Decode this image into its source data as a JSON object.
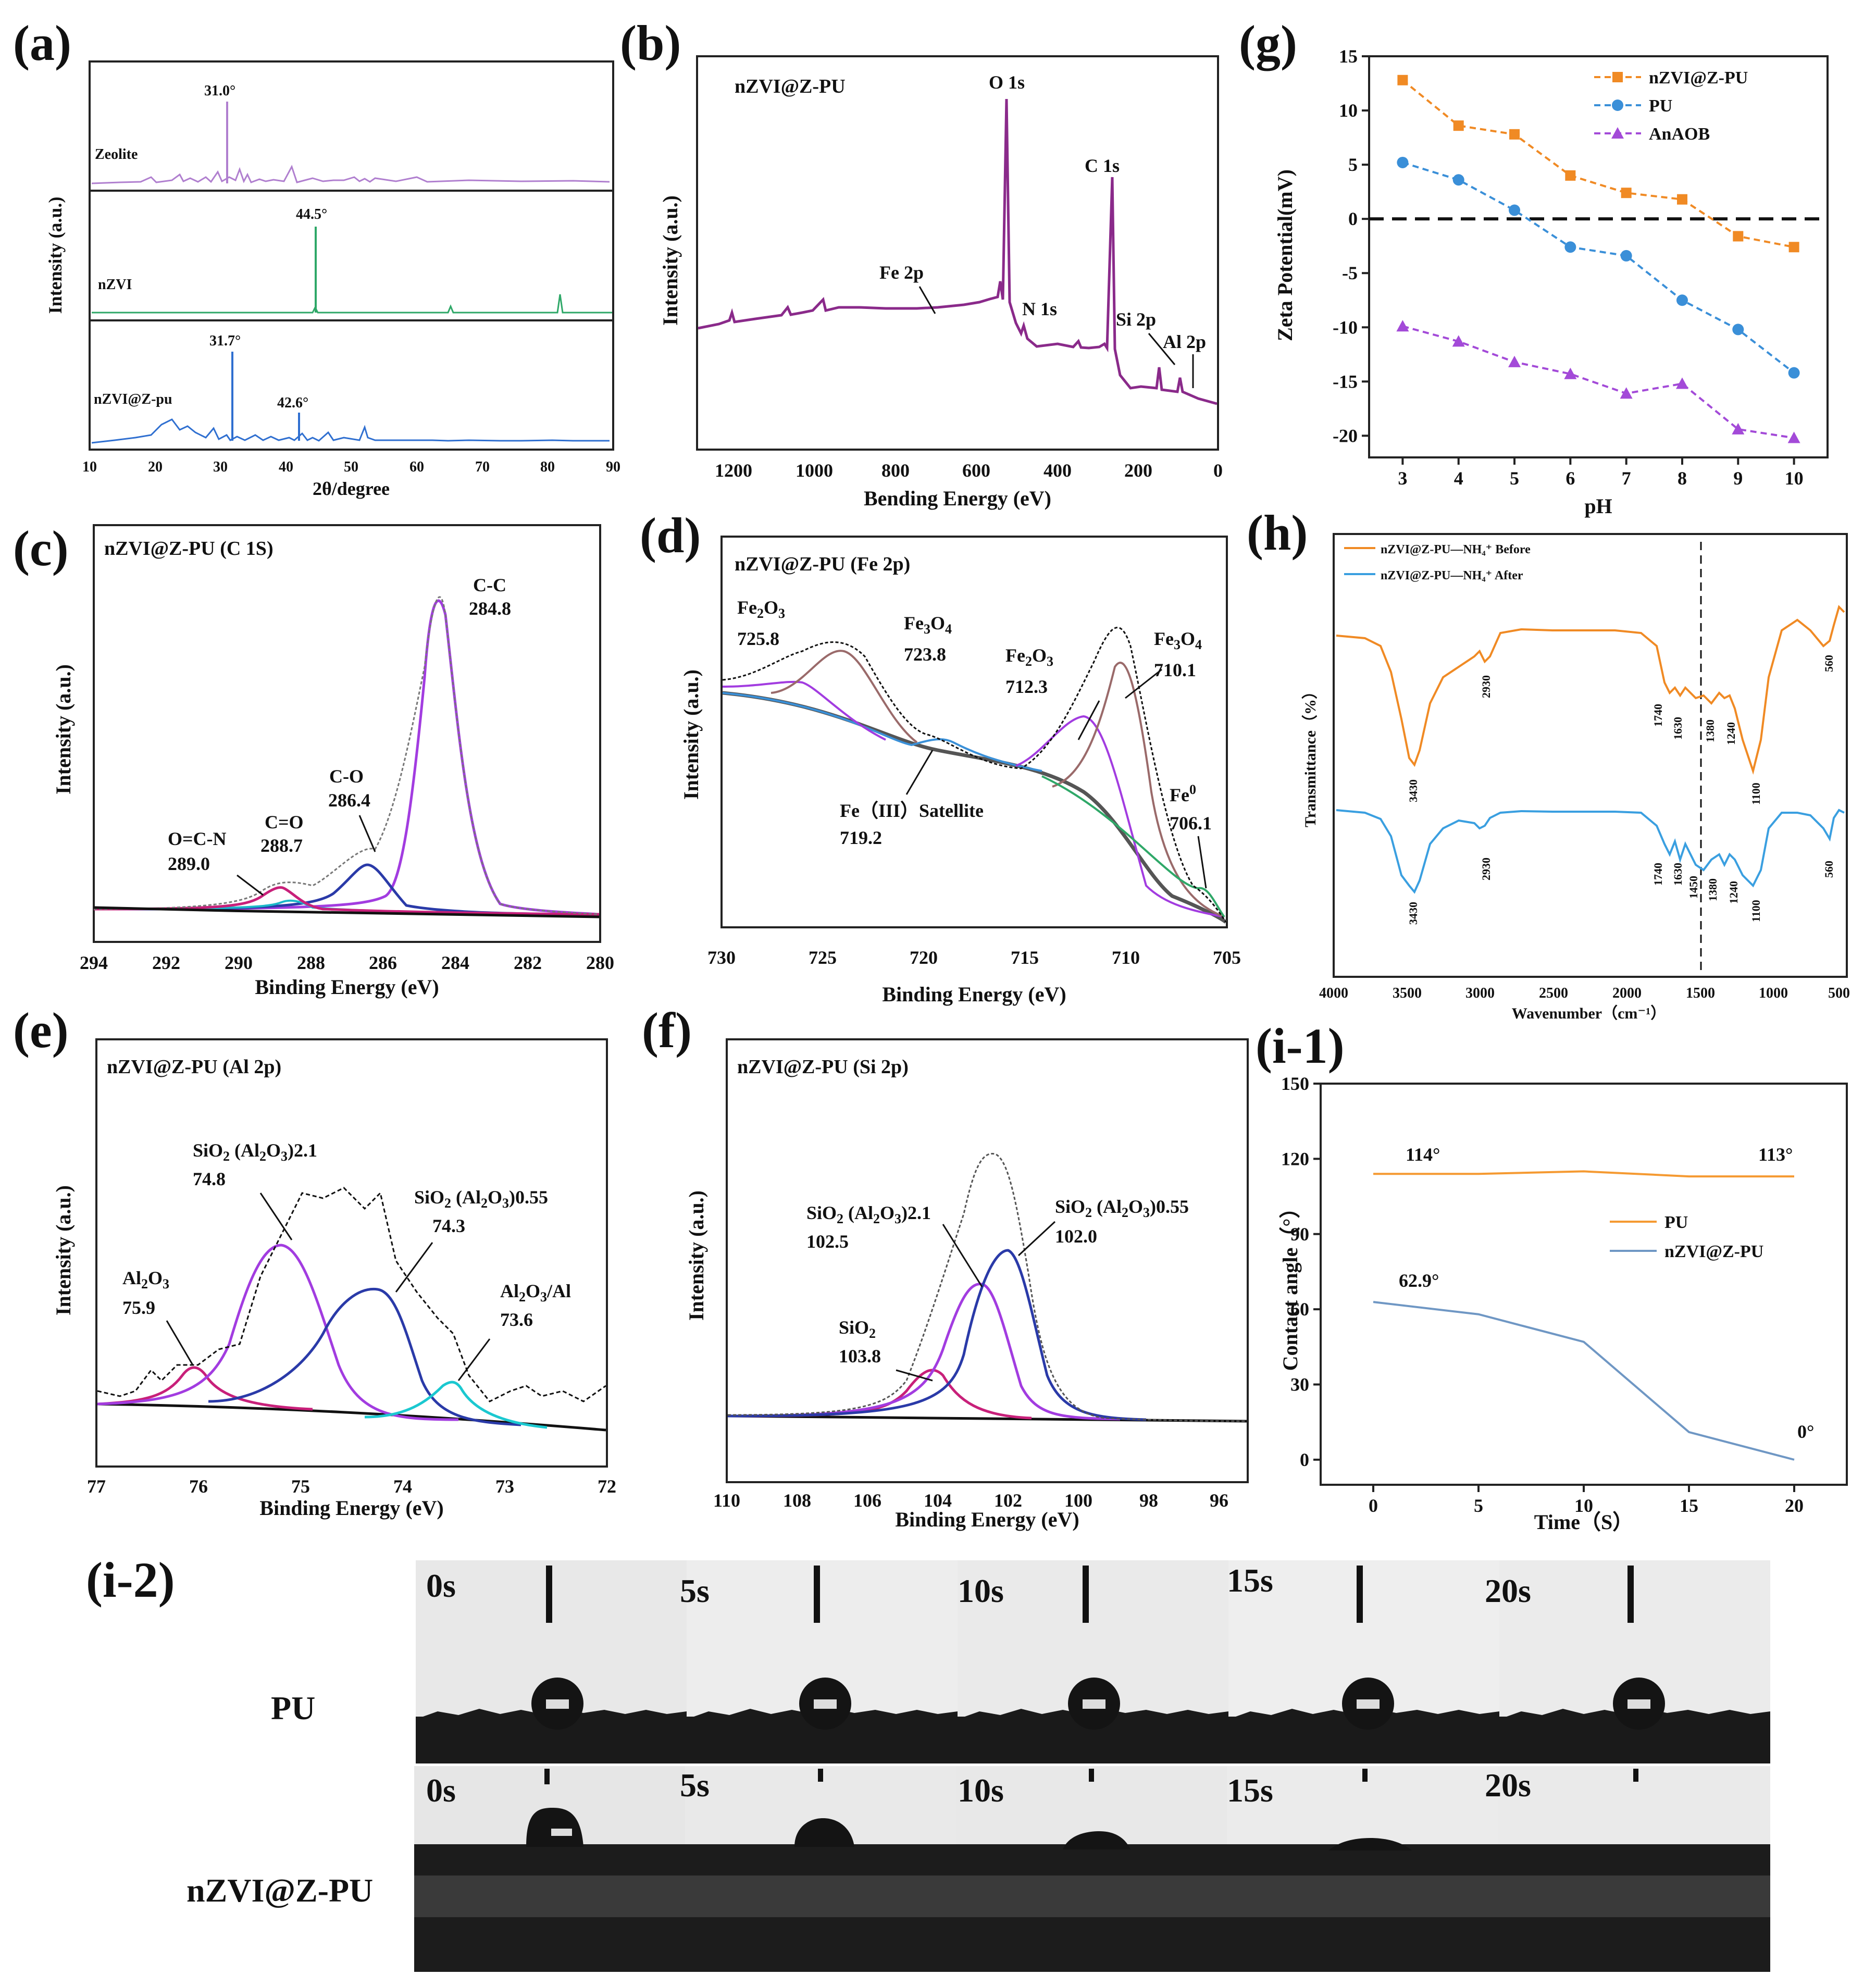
{
  "panels": {
    "a": {
      "letter": "(a)",
      "xlabel": "2θ/degree",
      "ylabel": "Intensity (a.u.)",
      "xticks": [
        "10",
        "20",
        "30",
        "40",
        "50",
        "60",
        "70",
        "80",
        "90"
      ],
      "samples": [
        {
          "name": "Zeolite",
          "color": "#b07fcf",
          "peak_label": "31.0°"
        },
        {
          "name": "nZVI",
          "color": "#2fa868",
          "peak_label": "44.5°"
        },
        {
          "name": "nZVI@Z-pu",
          "color": "#2f6fd0",
          "peak_labels": [
            "31.7°",
            "42.6°"
          ]
        }
      ]
    },
    "b": {
      "letter": "(b)",
      "title": "nZVI@Z-PU",
      "xlabel": "Bending Energy (eV)",
      "ylabel": "Intensity (a.u.)",
      "xticks": [
        "1200",
        "1000",
        "800",
        "600",
        "400",
        "200",
        "0"
      ],
      "annotations": [
        "O 1s",
        "C 1s",
        "Fe 2p",
        "N 1s",
        "Si 2p",
        "Al 2p"
      ],
      "color": "#8a2a8a"
    },
    "c": {
      "letter": "(c)",
      "title": "nZVI@Z-PU (C 1S)",
      "xlabel": "Binding Energy (eV)",
      "ylabel": "Intensity (a.u.)",
      "xticks": [
        "294",
        "292",
        "290",
        "288",
        "286",
        "284",
        "282",
        "280"
      ],
      "peaks": [
        {
          "label": "C-C",
          "value": "284.8"
        },
        {
          "label": "C-O",
          "value": "286.4"
        },
        {
          "label": "C=O",
          "value": "288.7"
        },
        {
          "label": "O=C-N",
          "value": "289.0"
        }
      ]
    },
    "d": {
      "letter": "(d)",
      "title": "nZVI@Z-PU (Fe 2p)",
      "xlabel": "Binding Energy (eV)",
      "ylabel": "Intensity (a.u.)",
      "xticks": [
        "730",
        "725",
        "720",
        "715",
        "710",
        "705"
      ],
      "peaks": [
        {
          "label": "Fe2O3",
          "value": "725.8"
        },
        {
          "label": "Fe3O4",
          "value": "723.8"
        },
        {
          "label": "Fe2O3",
          "value": "712.3"
        },
        {
          "label": "Fe3O4",
          "value": "710.1"
        },
        {
          "label": "Fe0",
          "value": "706.1"
        },
        {
          "label": "Fe（III）Satellite",
          "value": "719.2"
        }
      ]
    },
    "e": {
      "letter": "(e)",
      "title": "nZVI@Z-PU (Al 2p)",
      "xlabel": "Binding Energy (eV)",
      "ylabel": "Intensity (a.u.)",
      "xticks": [
        "77",
        "76",
        "75",
        "74",
        "73",
        "72"
      ],
      "peaks": [
        {
          "label": "Al2O3",
          "value": "75.9"
        },
        {
          "label": "SiO2 (Al2O3)2.1",
          "value": "74.8"
        },
        {
          "label": "SiO2 (Al2O3)0.55",
          "value": "74.3"
        },
        {
          "label": "Al2O3/Al",
          "value": "73.6"
        }
      ]
    },
    "f": {
      "letter": "(f)",
      "title": "nZVI@Z-PU (Si 2p)",
      "xlabel": "Binding Energy (eV)",
      "ylabel": "Intensity (a.u.)",
      "xticks": [
        "110",
        "108",
        "106",
        "104",
        "102",
        "100",
        "98",
        "96"
      ],
      "peaks": [
        {
          "label": "SiO2 (Al2O3)2.1",
          "value": "102.5"
        },
        {
          "label": "SiO2 (Al2O3)0.55",
          "value": "102.0"
        },
        {
          "label": "SiO2",
          "value": "103.8"
        }
      ]
    },
    "g": {
      "letter": "(g)",
      "xlabel": "pH",
      "ylabel": "Zeta Potential(mV)"
    },
    "h": {
      "letter": "(h)",
      "xlabel": "Wavenumber（cm⁻¹）",
      "ylabel": "Transmittance（%）",
      "xticks": [
        "4000",
        "3500",
        "3000",
        "2500",
        "2000",
        "1500",
        "1000",
        "500"
      ],
      "legend": [
        "nZVI@Z-PU—NH₄⁺ Before",
        "nZVI@Z-PU—NH₄⁺ After"
      ],
      "before_labels": [
        "3430",
        "2930",
        "1740",
        "1630",
        "1380",
        "1240",
        "1100",
        "560"
      ],
      "after_labels": [
        "3430",
        "2930",
        "1740",
        "1630",
        "1450",
        "1380",
        "1240",
        "1100",
        "560"
      ]
    },
    "i1": {
      "letter": "(i-1)",
      "xlabel": "Time（S）",
      "ylabel": "Contact angle（°）",
      "annotations": [
        "114°",
        "113°",
        "62.9°",
        "0°"
      ]
    },
    "i2": {
      "letter": "(i-2)",
      "rows": [
        "PU",
        "nZVI@Z-PU"
      ],
      "times": [
        "0s",
        "5s",
        "10s",
        "15s",
        "20s"
      ]
    }
  },
  "chart_data": [
    {
      "panel": "g",
      "type": "line",
      "x": [
        3,
        4,
        5,
        6,
        7,
        8,
        9,
        10
      ],
      "xlim": [
        2.4,
        10.6
      ],
      "ylim": [
        -22,
        15
      ],
      "yticks": [
        15,
        10,
        5,
        0,
        -5,
        -10,
        -15,
        -20
      ],
      "reference_line_y": 0,
      "legend_position": "top-right",
      "series": [
        {
          "name": "nZVI@Z-PU",
          "color": "#f08a24",
          "marker": "square",
          "values": [
            12.8,
            8.6,
            7.8,
            4.0,
            2.4,
            1.8,
            -1.6,
            -2.6
          ]
        },
        {
          "name": "PU",
          "color": "#3a8fd8",
          "marker": "circle",
          "values": [
            5.2,
            3.6,
            0.8,
            -2.6,
            -3.4,
            -7.5,
            -10.2,
            -14.2
          ]
        },
        {
          "name": "AnAOB",
          "color": "#a34ad8",
          "marker": "triangle",
          "values": [
            -9.9,
            -11.3,
            -13.2,
            -14.3,
            -16.1,
            -15.2,
            -19.4,
            -20.2
          ]
        }
      ]
    },
    {
      "panel": "i-1",
      "type": "line",
      "x": [
        0,
        5,
        10,
        15,
        20
      ],
      "xlim": [
        -2.5,
        22.5
      ],
      "ylim": [
        -10,
        150
      ],
      "yticks": [
        0,
        30,
        60,
        90,
        120,
        150
      ],
      "legend_position": "right",
      "series": [
        {
          "name": "PU",
          "color": "#f59a32",
          "values": [
            114,
            114,
            115,
            113,
            113
          ]
        },
        {
          "name": "nZVI@Z-PU",
          "color": "#6f97c4",
          "values": [
            62.9,
            58,
            47,
            11,
            0
          ]
        }
      ]
    }
  ]
}
